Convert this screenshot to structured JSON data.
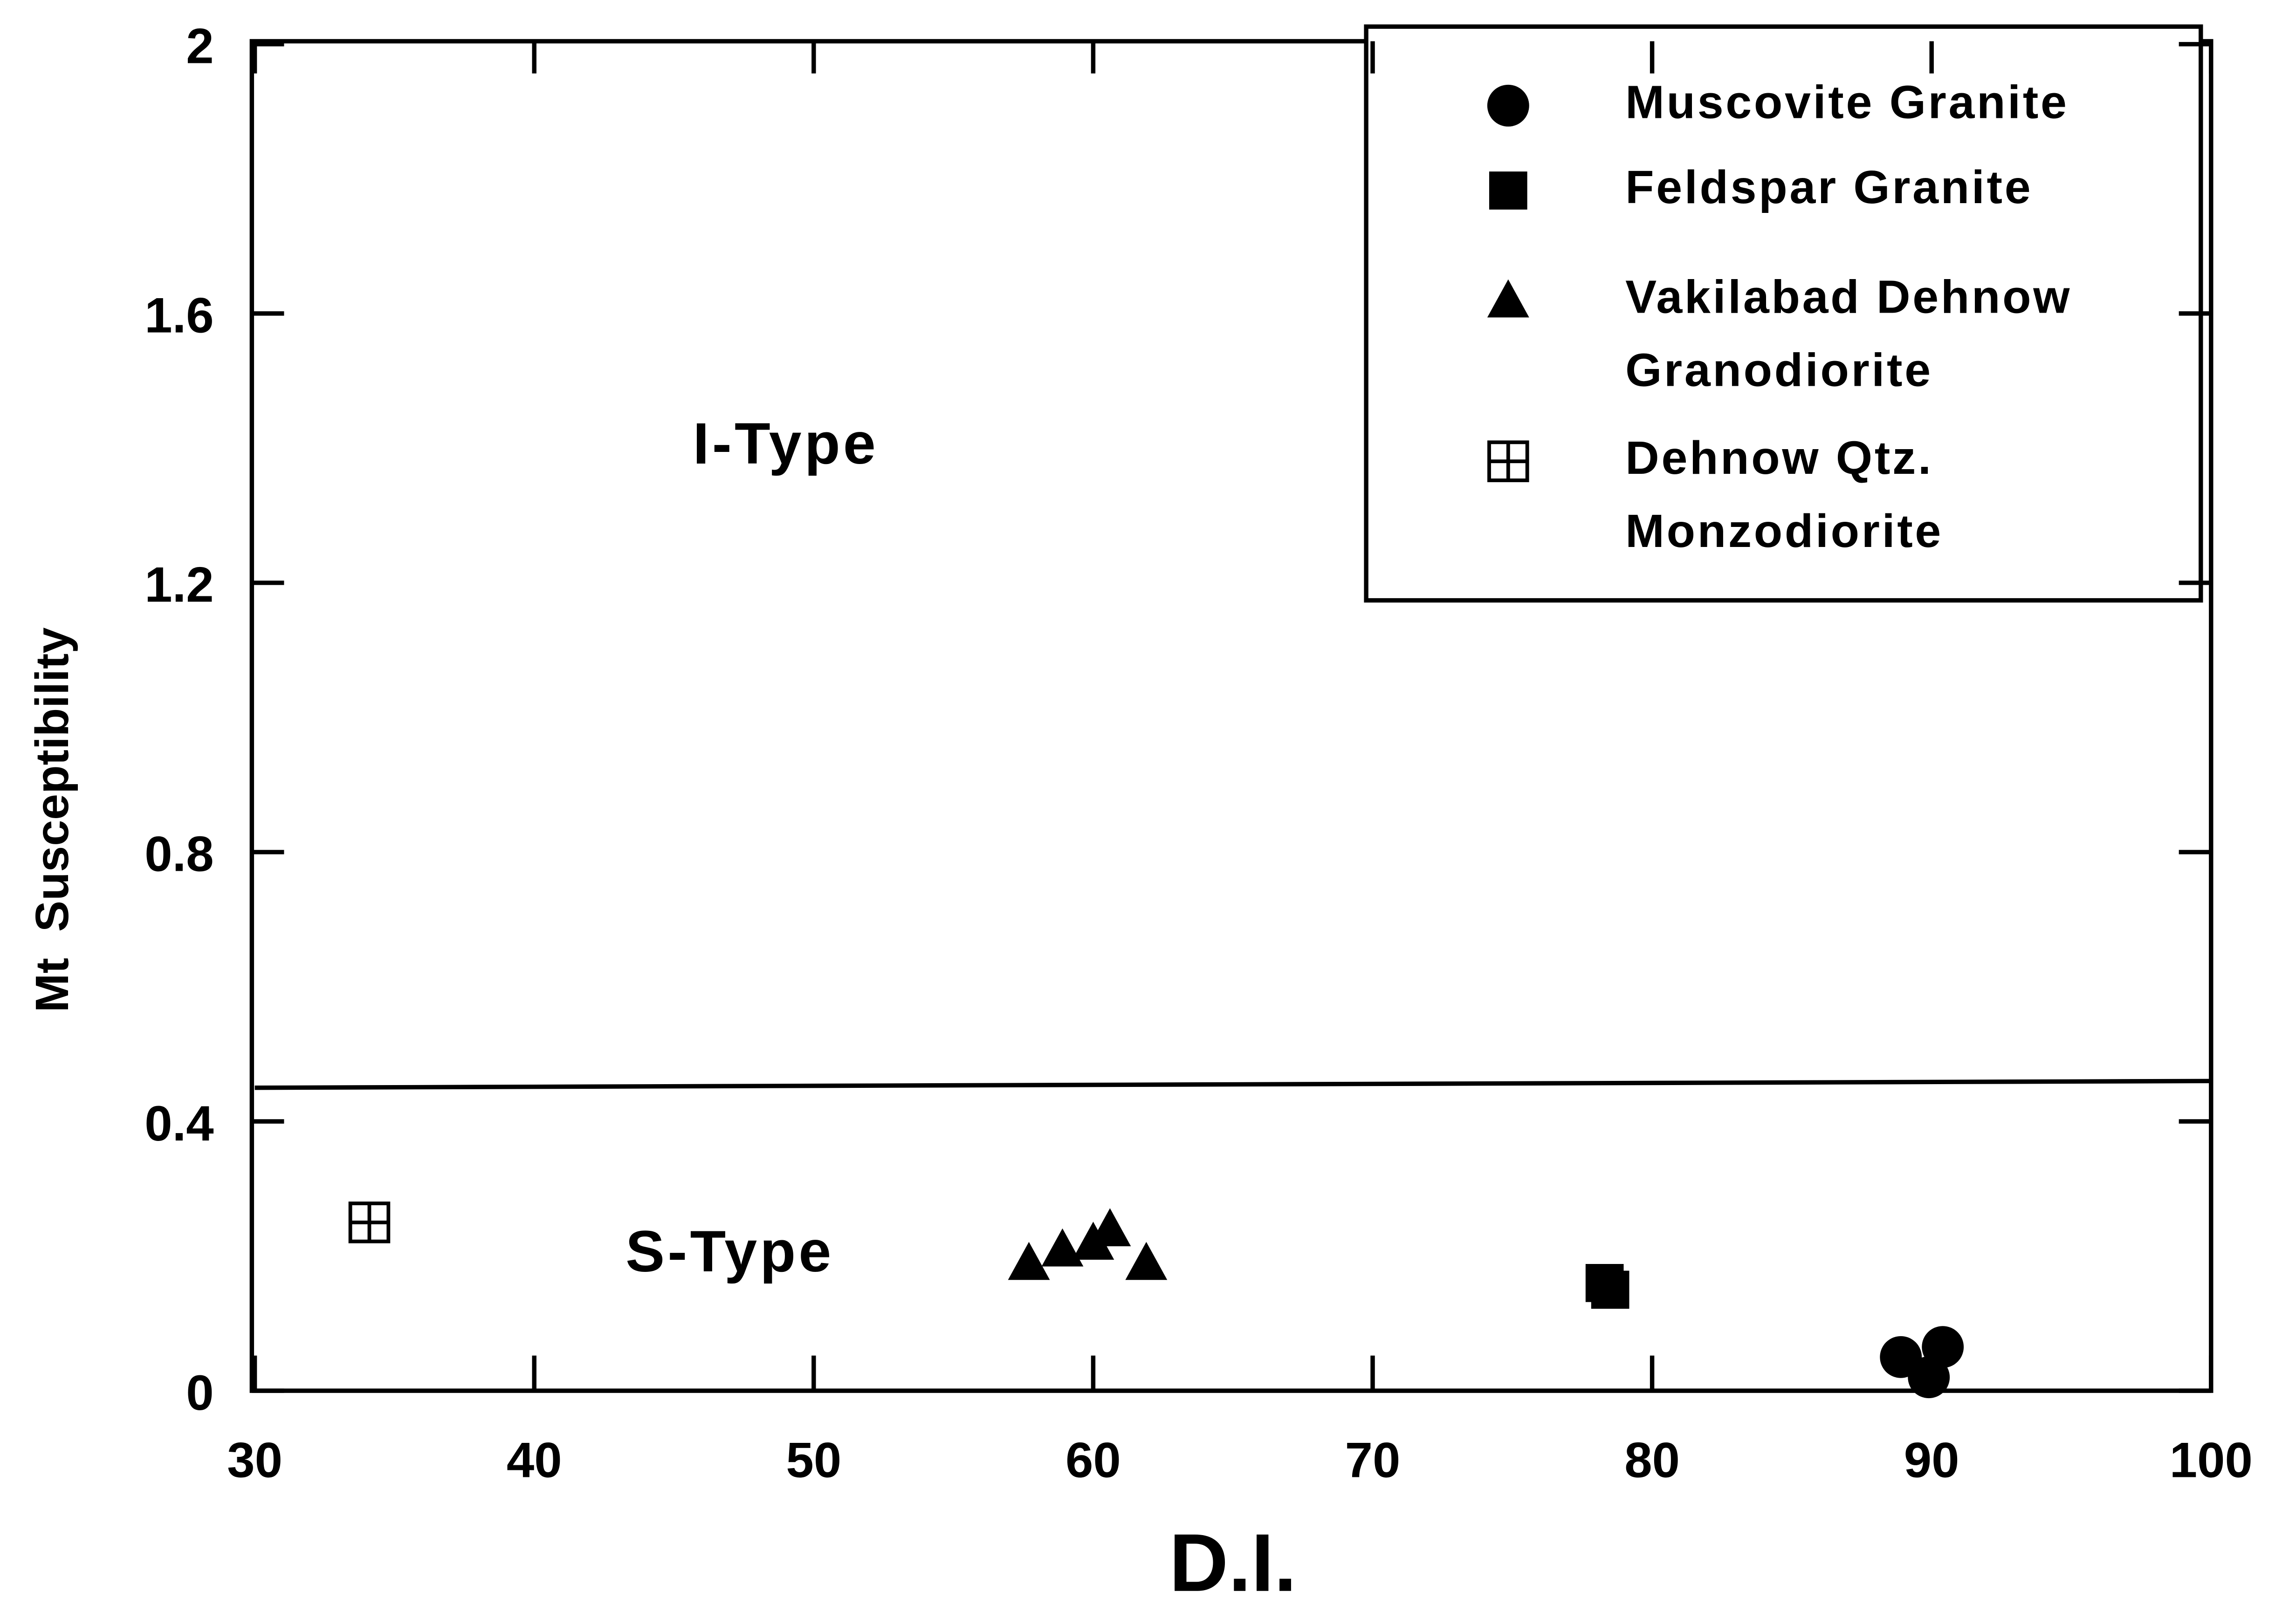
{
  "chart_data": {
    "type": "scatter",
    "xlabel": "D.I.",
    "ylabel": "Mt  Susceptibility",
    "xlim": [
      30,
      100
    ],
    "ylim": [
      0,
      2
    ],
    "xticks": [
      30,
      40,
      50,
      60,
      70,
      80,
      90,
      100
    ],
    "yticks": [
      0,
      0.4,
      0.8,
      1.2,
      1.6,
      2
    ],
    "legend": "upper right",
    "series": [
      {
        "name": "Muscovite Granite",
        "marker": "circle",
        "color": "#000000",
        "x": [
          88.9,
          89.9,
          90.4
        ],
        "values": [
          0.05,
          0.02,
          0.065
        ]
      },
      {
        "name": "Feldspar Granite",
        "marker": "square",
        "color": "#000000",
        "x": [
          78.3,
          78.5
        ],
        "values": [
          0.16,
          0.15
        ]
      },
      {
        "name": "Vakilabad Dehnow\nGranodiorite",
        "marker": "triangle",
        "color": "#000000",
        "x": [
          57.7,
          58.9,
          60.0,
          60.6,
          61.9
        ],
        "values": [
          0.19,
          0.21,
          0.22,
          0.24,
          0.19
        ]
      },
      {
        "name": "Dehnow Qtz.\nMonzodiorite",
        "marker": "crossed-square",
        "color": "#000000",
        "x": [
          34.1
        ],
        "values": [
          0.25
        ]
      }
    ],
    "boundary": {
      "x": [
        30,
        100
      ],
      "y": [
        0.45,
        0.46
      ]
    },
    "annotations": [
      {
        "text": "I-Type",
        "x": 49,
        "y": 1.4
      },
      {
        "text": "S-Type",
        "x": 47,
        "y": 0.2
      }
    ]
  }
}
